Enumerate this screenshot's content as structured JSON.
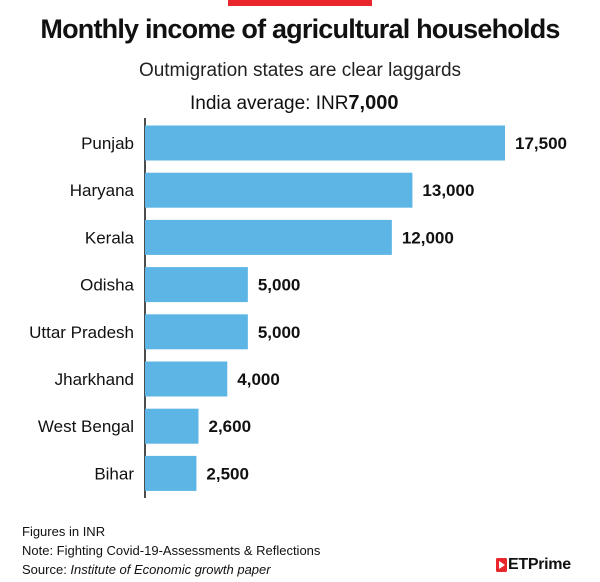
{
  "header": {
    "title": "Monthly income of agricultural households",
    "subtitle": "Outmigration states are clear laggards",
    "average_label": "India average: INR",
    "average_value": "7,000"
  },
  "chart_data": {
    "type": "bar",
    "orientation": "horizontal",
    "title": "Monthly income of agricultural households",
    "subtitle": "Outmigration states are clear laggards",
    "categories": [
      "Punjab",
      "Haryana",
      "Kerala",
      "Odisha",
      "Uttar Pradesh",
      "Jharkhand",
      "West Bengal",
      "Bihar"
    ],
    "values": [
      17500,
      13000,
      12000,
      5000,
      5000,
      4000,
      2600,
      2500
    ],
    "value_labels": [
      "17,500",
      "13,000",
      "12,000",
      "5,000",
      "5,000",
      "4,000",
      "2,600",
      "2,500"
    ],
    "unit": "INR",
    "xlim": [
      0,
      17500
    ],
    "grid": false,
    "legend": "none",
    "bar_color": "#5db5e5"
  },
  "footer": {
    "units_note": "Figures in INR",
    "note": "Note: Fighting Covid-19-Assessments & Reflections",
    "source_label": "Source: ",
    "source_text": "Institute of Economic growth paper"
  },
  "brand": {
    "logo_text": "ETPrime",
    "logo_icon": "play-triangle-icon",
    "accent_color": "#e8262b",
    "mark_color": "#e8262b"
  }
}
